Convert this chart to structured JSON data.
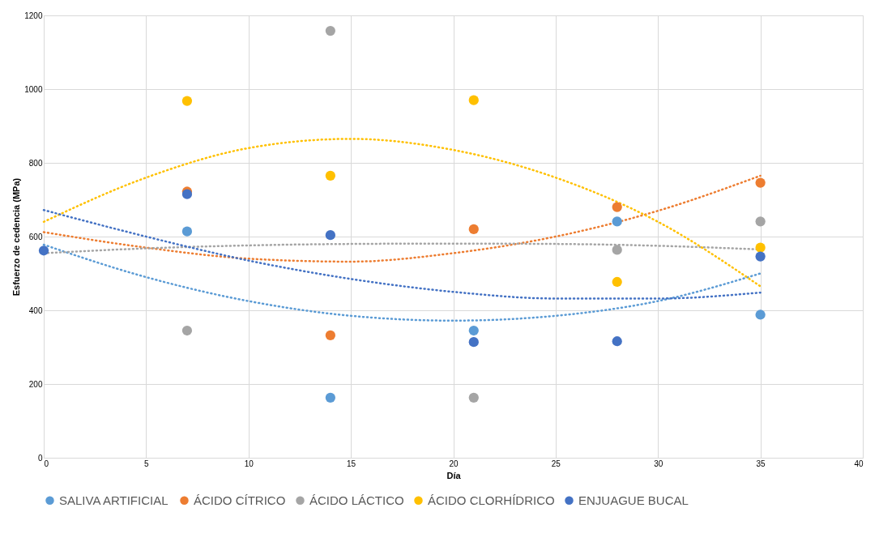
{
  "chart_data": {
    "type": "scatter",
    "xlabel": "Día",
    "ylabel": "Esfuerzo de cedencia (MPa)",
    "x": [
      0,
      7,
      14,
      21,
      28,
      35
    ],
    "series": [
      {
        "name": "SALIVA ARTIFICIAL",
        "color": "#5b9bd5",
        "marker": "circle",
        "values": [
          null,
          614,
          163,
          345,
          641,
          388
        ]
      },
      {
        "name": "ÁCIDO CÍTRICO",
        "color": "#ed7d31",
        "marker": "circle",
        "values": [
          null,
          722,
          332,
          620,
          680,
          746
        ]
      },
      {
        "name": "ÁCIDO LÁCTICO",
        "color": "#a5a5a5",
        "marker": "circle",
        "values": [
          null,
          345,
          1158,
          163,
          564,
          641
        ]
      },
      {
        "name": "ÁCIDO CLORHÍDRICO",
        "color": "#ffc000",
        "marker": "circle",
        "values": [
          null,
          968,
          765,
          970,
          477,
          570
        ]
      },
      {
        "name": "ENJUAGUE BUCAL",
        "color": "#4472c4",
        "marker": "circle",
        "values": [
          562,
          715,
          604,
          314,
          316,
          546
        ]
      },
      {
        "type": "line",
        "line_style": "dotted",
        "marker": "none",
        "color": "#5b9bd5",
        "x": [
          0,
          5,
          10,
          15,
          20,
          25,
          30,
          35
        ],
        "values": [
          578,
          490,
          425,
          385,
          372,
          385,
          425,
          500
        ]
      },
      {
        "type": "line",
        "line_style": "dotted",
        "marker": "none",
        "color": "#ed7d31",
        "x": [
          0,
          5,
          10,
          15,
          20,
          25,
          30,
          35
        ],
        "values": [
          612,
          570,
          540,
          532,
          555,
          600,
          670,
          765
        ]
      },
      {
        "type": "line",
        "line_style": "dotted",
        "marker": "none",
        "color": "#a5a5a5",
        "x": [
          0,
          5,
          10,
          15,
          20,
          25,
          30,
          35
        ],
        "values": [
          555,
          568,
          576,
          580,
          581,
          580,
          575,
          565
        ]
      },
      {
        "type": "line",
        "line_style": "dotted",
        "marker": "none",
        "color": "#ffc000",
        "x": [
          0,
          5,
          10,
          15,
          20,
          25,
          30,
          35
        ],
        "values": [
          640,
          760,
          840,
          865,
          835,
          760,
          640,
          465
        ]
      },
      {
        "type": "line",
        "line_style": "dotted",
        "marker": "none",
        "color": "#4472c4",
        "x": [
          0,
          5,
          10,
          15,
          20,
          25,
          30,
          35
        ],
        "values": [
          672,
          600,
          535,
          485,
          450,
          432,
          432,
          448
        ]
      }
    ],
    "xlim": [
      0,
      40
    ],
    "xticks": [
      0,
      5,
      10,
      15,
      20,
      25,
      30,
      35,
      40
    ],
    "ylim": [
      0,
      1200
    ],
    "yticks": [
      0,
      200,
      400,
      600,
      800,
      1000,
      1200
    ],
    "grid": true,
    "legend": "bottom"
  }
}
